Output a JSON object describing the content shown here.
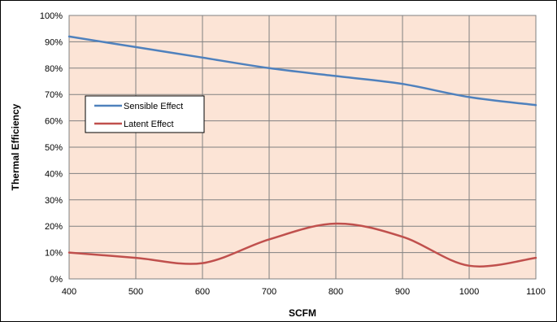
{
  "chart_data": {
    "type": "line",
    "xlabel": "SCFM",
    "ylabel": "Thermal Efficiency",
    "xlim": [
      400,
      1100
    ],
    "ylim": [
      0,
      100
    ],
    "x_ticks": [
      "400",
      "500",
      "600",
      "700",
      "800",
      "900",
      "1000",
      "1100"
    ],
    "y_ticks": [
      "0%",
      "10%",
      "20%",
      "30%",
      "40%",
      "50%",
      "60%",
      "70%",
      "80%",
      "90%",
      "100%"
    ],
    "grid": true,
    "legend_position": "left, upper-middle",
    "plot_background": "#FCE4D6",
    "series": [
      {
        "name": "Sensible Effect",
        "color": "#4F81BD",
        "x": [
          400,
          500,
          600,
          700,
          800,
          900,
          1000,
          1100
        ],
        "y": [
          92,
          88,
          84,
          80,
          77,
          74,
          69,
          66
        ]
      },
      {
        "name": "Latent Effect",
        "color": "#C0504D",
        "x": [
          400,
          500,
          600,
          700,
          800,
          900,
          1000,
          1100
        ],
        "y": [
          10,
          8,
          6,
          15,
          21,
          16,
          5,
          8
        ]
      }
    ]
  }
}
